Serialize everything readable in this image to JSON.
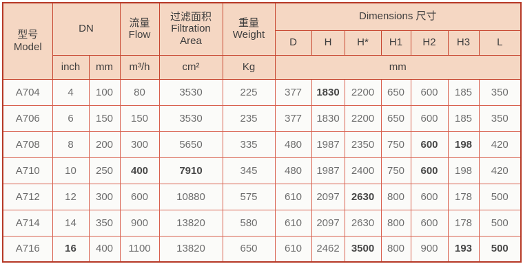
{
  "colors": {
    "header_bg": "#f5d7c3",
    "outer_border": "#b63826",
    "header_border": "#c7452f",
    "body_border": "#d8604e",
    "header_text": "#3d3d3d",
    "cell_text": "#6e6e6e",
    "cell_text_bold": "#474747",
    "row_bg": "#fbfbf9"
  },
  "table": {
    "header": {
      "model_zh": "型号",
      "model_en": "Model",
      "dn": "DN",
      "flow_zh": "流量",
      "flow_en": "Flow",
      "filtration_zh": "过滤面积",
      "filtration_en1": "Filtration",
      "filtration_en2": "Area",
      "weight_zh": "重量",
      "weight_en": "Weight",
      "dimensions": "Dimensions 尺寸",
      "dim_cols": [
        "D",
        "H",
        "H*",
        "H1",
        "H2",
        "H3",
        "L"
      ],
      "unit_inch": "inch",
      "unit_mm": "mm",
      "unit_flow": "m³/h",
      "unit_area": "cm²",
      "unit_weight": "Kg",
      "unit_dims": "mm"
    },
    "rows": [
      {
        "model": "A704",
        "values": [
          "4",
          "100",
          "80",
          "3530",
          "225",
          "377",
          "1830",
          "2200",
          "650",
          "600",
          "185",
          "350"
        ],
        "bold": [
          6
        ]
      },
      {
        "model": "A706",
        "values": [
          "6",
          "150",
          "150",
          "3530",
          "235",
          "377",
          "1830",
          "2200",
          "650",
          "600",
          "185",
          "350"
        ],
        "bold": []
      },
      {
        "model": "A708",
        "values": [
          "8",
          "200",
          "300",
          "5650",
          "335",
          "480",
          "1987",
          "2350",
          "750",
          "600",
          "198",
          "420"
        ],
        "bold": [
          9,
          10
        ]
      },
      {
        "model": "A710",
        "values": [
          "10",
          "250",
          "400",
          "7910",
          "345",
          "480",
          "1987",
          "2400",
          "750",
          "600",
          "198",
          "420"
        ],
        "bold": [
          2,
          3,
          9
        ]
      },
      {
        "model": "A712",
        "values": [
          "12",
          "300",
          "600",
          "10880",
          "575",
          "610",
          "2097",
          "2630",
          "800",
          "600",
          "178",
          "500"
        ],
        "bold": [
          7
        ]
      },
      {
        "model": "A714",
        "values": [
          "14",
          "350",
          "900",
          "13820",
          "580",
          "610",
          "2097",
          "2630",
          "800",
          "600",
          "178",
          "500"
        ],
        "bold": []
      },
      {
        "model": "A716",
        "values": [
          "16",
          "400",
          "1100",
          "13820",
          "650",
          "610",
          "2462",
          "3500",
          "800",
          "900",
          "193",
          "500"
        ],
        "bold": [
          0,
          7,
          10,
          11
        ]
      }
    ]
  }
}
